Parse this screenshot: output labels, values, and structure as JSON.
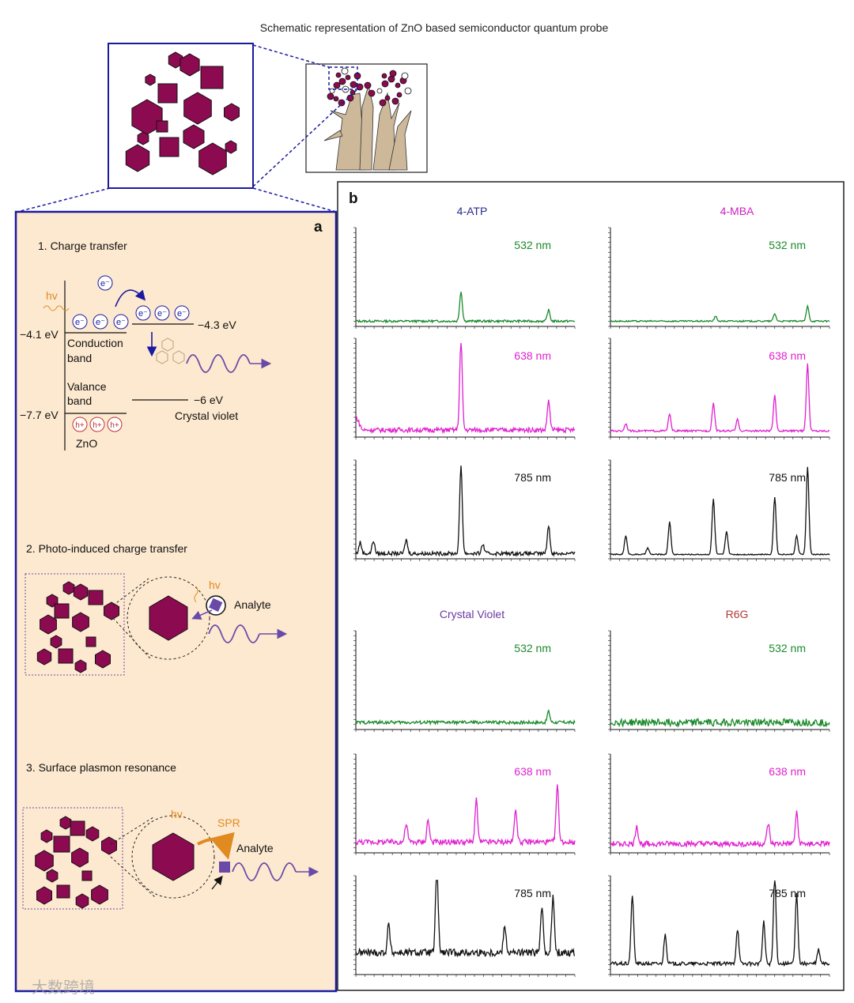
{
  "figure": {
    "title": "Schematic representation of ZnO based semiconductor quantum probe",
    "panel_a_letter": "a",
    "panel_b_letter": "b",
    "watermark": "大数跨境"
  },
  "panel_a": {
    "step1": {
      "heading": "1. Charge transfer",
      "hv": "hv",
      "electron": "e⁻",
      "hole": "h+",
      "zno_cb_energy": "−4.1 eV",
      "zno_vb_energy": "−7.7 eV",
      "cv_lumo_energy": "−4.3 eV",
      "cv_homo_energy": "−6 eV",
      "conduction_band": [
        "Conduction",
        "band"
      ],
      "valence_band": [
        "Valance",
        "band"
      ],
      "zno_label": "ZnO",
      "cv_label": "Crystal violet"
    },
    "step2": {
      "heading": "2. Photo-induced charge transfer",
      "hv": "hv",
      "analyte": "Analyte"
    },
    "step3": {
      "heading": "3. Surface plasmon resonance",
      "hv": "hv",
      "spr": "SPR",
      "analyte": "Analyte"
    }
  },
  "colors": {
    "particle": "#8b0a50",
    "panel_bg": "#fde9d0",
    "frame": "#1a1aa0",
    "green": "#1a8a2a",
    "magenta": "#e020d0",
    "black": "#111111",
    "orange": "#e08a20",
    "purple": "#6a4aa8",
    "tree": "#cdb89a"
  },
  "chart_data": [
    {
      "type": "line",
      "title": "4-ATP",
      "laser": "532 nm",
      "color": "green",
      "baseline": 0.04,
      "noise": 0.012,
      "peaks": [
        [
          0.48,
          0.32
        ],
        [
          0.88,
          0.12
        ]
      ]
    },
    {
      "type": "line",
      "title": "",
      "laser": "638 nm",
      "color": "magenta",
      "baseline": 0.06,
      "noise": 0.025,
      "peaks": [
        [
          0.48,
          0.95
        ],
        [
          0.88,
          0.32
        ]
      ]
    },
    {
      "type": "line",
      "title": "",
      "laser": "785 nm",
      "color": "black",
      "baseline": 0.04,
      "noise": 0.02,
      "peaks": [
        [
          0.02,
          0.12
        ],
        [
          0.08,
          0.14
        ],
        [
          0.23,
          0.15
        ],
        [
          0.48,
          0.95
        ],
        [
          0.58,
          0.1
        ],
        [
          0.88,
          0.3
        ]
      ]
    },
    {
      "type": "line",
      "title": "4-MBA",
      "laser": "532 nm",
      "color": "green",
      "baseline": 0.04,
      "noise": 0.008,
      "peaks": [
        [
          0.48,
          0.05
        ],
        [
          0.75,
          0.08
        ],
        [
          0.9,
          0.16
        ]
      ]
    },
    {
      "type": "line",
      "title": "",
      "laser": "638 nm",
      "color": "magenta",
      "baseline": 0.05,
      "noise": 0.01,
      "peaks": [
        [
          0.07,
          0.08
        ],
        [
          0.27,
          0.18
        ],
        [
          0.47,
          0.3
        ],
        [
          0.58,
          0.12
        ],
        [
          0.75,
          0.38
        ],
        [
          0.9,
          0.72
        ]
      ]
    },
    {
      "type": "line",
      "title": "",
      "laser": "785 nm",
      "color": "black",
      "baseline": 0.03,
      "noise": 0.006,
      "peaks": [
        [
          0.07,
          0.2
        ],
        [
          0.17,
          0.07
        ],
        [
          0.27,
          0.35
        ],
        [
          0.47,
          0.6
        ],
        [
          0.53,
          0.25
        ],
        [
          0.75,
          0.62
        ],
        [
          0.85,
          0.2
        ],
        [
          0.9,
          0.95
        ]
      ]
    },
    {
      "type": "line",
      "title": "Crystal Violet",
      "laser": "532 nm",
      "color": "green",
      "baseline": 0.06,
      "noise": 0.018,
      "peaks": [
        [
          0.88,
          0.12
        ]
      ]
    },
    {
      "type": "line",
      "title": "",
      "laser": "638 nm",
      "color": "magenta",
      "baseline": 0.1,
      "noise": 0.03,
      "peaks": [
        [
          0.23,
          0.2
        ],
        [
          0.33,
          0.24
        ],
        [
          0.55,
          0.45
        ],
        [
          0.73,
          0.36
        ],
        [
          0.92,
          0.6
        ]
      ]
    },
    {
      "type": "line",
      "title": "",
      "laser": "785 nm",
      "color": "black",
      "baseline": 0.22,
      "noise": 0.04,
      "peaks": [
        [
          0.15,
          0.3
        ],
        [
          0.37,
          0.95
        ],
        [
          0.68,
          0.3
        ],
        [
          0.85,
          0.5
        ],
        [
          0.9,
          0.6
        ]
      ]
    },
    {
      "type": "line",
      "title": "R6G",
      "laser": "532 nm",
      "color": "green",
      "baseline": 0.06,
      "noise": 0.04,
      "peaks": []
    },
    {
      "type": "line",
      "title": "",
      "laser": "638 nm",
      "color": "magenta",
      "baseline": 0.08,
      "noise": 0.03,
      "peaks": [
        [
          0.12,
          0.2
        ],
        [
          0.72,
          0.22
        ],
        [
          0.85,
          0.33
        ]
      ]
    },
    {
      "type": "line",
      "title": "",
      "laser": "785 nm",
      "color": "black",
      "baseline": 0.1,
      "noise": 0.02,
      "peaks": [
        [
          0.1,
          0.75
        ],
        [
          0.25,
          0.32
        ],
        [
          0.58,
          0.38
        ],
        [
          0.7,
          0.45
        ],
        [
          0.75,
          0.95
        ],
        [
          0.85,
          0.75
        ],
        [
          0.95,
          0.15
        ]
      ]
    }
  ]
}
